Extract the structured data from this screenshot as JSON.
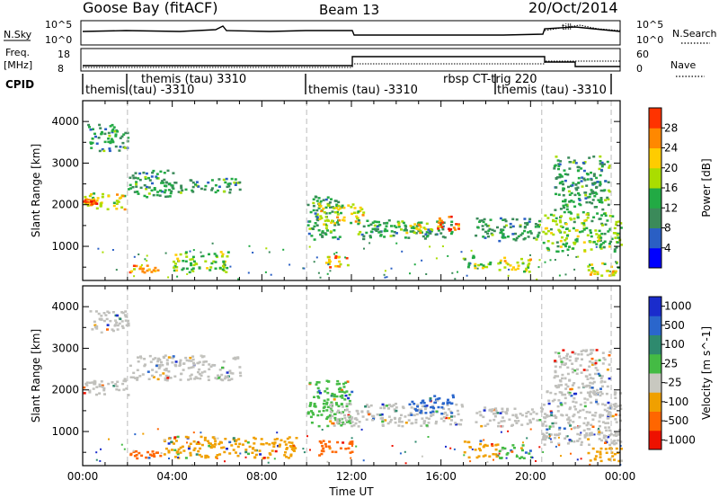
{
  "header": {
    "station": "Goose Bay (fitACF)",
    "beam": "Beam 13",
    "date": "20/Oct/2014"
  },
  "strip_nsky": {
    "left_label": "N.Sky",
    "right_label": "N.Search",
    "left_ticks": [
      "10^5",
      "10^0"
    ],
    "right_ticks": [
      "10^5",
      "10^0"
    ],
    "annotation": "till"
  },
  "strip_freq": {
    "left_label_1": "Freq.",
    "left_label_2": "[MHz]",
    "right_label": "Nave",
    "left_ticks": [
      "18",
      "8"
    ],
    "right_ticks": [
      "60",
      "0"
    ]
  },
  "cpid": {
    "label": "CPID",
    "segments": [
      {
        "name": "themis (tau) 3310",
        "start": 2.0,
        "end": 10.0
      },
      {
        "name": "themis",
        "start": 0.0,
        "end": 2.0
      },
      {
        "name": "(tau) -3310",
        "start": 2.0,
        "end": 10.0
      },
      {
        "name": "themis (tau) -3310",
        "start": 10.0,
        "end": 20.5
      },
      {
        "name": "rbsp CT-trig 220",
        "start": 15.0,
        "end": 20.5
      },
      {
        "name": "themis (tau) -3310",
        "start": 20.5,
        "end": 24.0
      }
    ]
  },
  "colors": {
    "power": [
      "#0000ff",
      "#2a5fc4",
      "#3b8a5a",
      "#22aa44",
      "#aadd00",
      "#ffcc00",
      "#ff8800",
      "#ff3300",
      "#ee0000"
    ],
    "velocity": [
      "#1a2ccc",
      "#2a66cc",
      "#2e8a6e",
      "#44bb44",
      "#c8c8c0",
      "#f0a000",
      "#ff6600",
      "#ee1100"
    ],
    "ground_scatter": "#c0c0bc"
  },
  "chart_data": [
    {
      "type": "heatmap",
      "panel": "power",
      "xlabel": "",
      "ylabel": "Slant Range [km]",
      "xlim": [
        0,
        24
      ],
      "ylim": [
        180,
        4500
      ],
      "xticks": [
        "00:00",
        "04:00",
        "08:00",
        "12:00",
        "16:00",
        "20:00",
        "00:00"
      ],
      "yticks": [
        1000,
        2000,
        3000,
        4000
      ],
      "colorbar": {
        "label": "Power [dB]",
        "ticks": [
          4,
          8,
          12,
          16,
          20,
          24,
          28
        ]
      },
      "blobs": [
        {
          "t0": 0.0,
          "t1": 2.0,
          "r0": 1900,
          "r1": 2300,
          "level": 16
        },
        {
          "t0": 0.0,
          "t1": 0.6,
          "r0": 2000,
          "r1": 2150,
          "level": 24
        },
        {
          "t0": 0.2,
          "t1": 2.0,
          "r0": 3300,
          "r1": 3950,
          "level": 8
        },
        {
          "t0": 2.0,
          "t1": 4.0,
          "r0": 2200,
          "r1": 2850,
          "level": 8
        },
        {
          "t0": 3.5,
          "t1": 7.0,
          "r0": 2300,
          "r1": 2650,
          "level": 8
        },
        {
          "t0": 2.0,
          "t1": 3.5,
          "r0": 380,
          "r1": 560,
          "level": 20
        },
        {
          "t0": 4.0,
          "t1": 6.5,
          "r0": 400,
          "r1": 900,
          "level": 12
        },
        {
          "t0": 10.0,
          "t1": 11.5,
          "r0": 1150,
          "r1": 2250,
          "level": 8
        },
        {
          "t0": 10.5,
          "t1": 12.5,
          "r0": 1550,
          "r1": 2050,
          "level": 16
        },
        {
          "t0": 12.0,
          "t1": 16.5,
          "r0": 1200,
          "r1": 1650,
          "level": 8
        },
        {
          "t0": 15.8,
          "t1": 16.8,
          "r0": 1400,
          "r1": 1750,
          "level": 24
        },
        {
          "t0": 14.0,
          "t1": 15.5,
          "r0": 1350,
          "r1": 1600,
          "level": 16
        },
        {
          "t0": 10.8,
          "t1": 11.8,
          "r0": 500,
          "r1": 800,
          "level": 20
        },
        {
          "t0": 17.0,
          "t1": 18.3,
          "r0": 500,
          "r1": 800,
          "level": 12
        },
        {
          "t0": 17.5,
          "t1": 20.5,
          "r0": 1150,
          "r1": 1700,
          "level": 8
        },
        {
          "t0": 18.5,
          "t1": 20.0,
          "r0": 380,
          "r1": 750,
          "level": 16
        },
        {
          "t0": 20.5,
          "t1": 24.0,
          "r0": 900,
          "r1": 1850,
          "level": 12
        },
        {
          "t0": 21.0,
          "t1": 23.5,
          "r0": 1900,
          "r1": 3200,
          "level": 8
        },
        {
          "t0": 22.5,
          "t1": 24.0,
          "r0": 300,
          "r1": 650,
          "level": 16
        }
      ]
    },
    {
      "type": "heatmap",
      "panel": "velocity",
      "xlabel": "Time UT",
      "ylabel": "Slant Range [km]",
      "xlim": [
        0,
        24
      ],
      "ylim": [
        180,
        4500
      ],
      "xticks": [
        "00:00",
        "04:00",
        "08:00",
        "12:00",
        "16:00",
        "20:00",
        "00:00"
      ],
      "yticks": [
        1000,
        2000,
        3000,
        4000
      ],
      "colorbar": {
        "label": "Velocity [m s^-1]",
        "ticks": [
          1000,
          500,
          100,
          25,
          -25,
          -100,
          -500,
          -1000
        ]
      },
      "blobs": [
        {
          "t0": 0.0,
          "t1": 2.0,
          "r0": 1900,
          "r1": 2300,
          "level": 0
        },
        {
          "t0": 0.2,
          "t1": 2.0,
          "r0": 3400,
          "r1": 3950,
          "level": 0
        },
        {
          "t0": 2.0,
          "t1": 7.0,
          "r0": 2250,
          "r1": 2850,
          "level": 0
        },
        {
          "t0": 2.0,
          "t1": 3.5,
          "r0": 380,
          "r1": 560,
          "level": -500
        },
        {
          "t0": 3.5,
          "t1": 9.5,
          "r0": 380,
          "r1": 900,
          "level": -100
        },
        {
          "t0": 10.0,
          "t1": 12.0,
          "r0": 1150,
          "r1": 2250,
          "level": 100
        },
        {
          "t0": 11.0,
          "t1": 17.0,
          "r0": 1150,
          "r1": 1700,
          "level": 0
        },
        {
          "t0": 14.5,
          "t1": 16.5,
          "r0": 1450,
          "r1": 1900,
          "level": 500
        },
        {
          "t0": 10.5,
          "t1": 12.0,
          "r0": 450,
          "r1": 800,
          "level": -500
        },
        {
          "t0": 17.0,
          "t1": 18.5,
          "r0": 400,
          "r1": 800,
          "level": -100
        },
        {
          "t0": 17.5,
          "t1": 20.5,
          "r0": 1150,
          "r1": 1600,
          "level": 0
        },
        {
          "t0": 18.5,
          "t1": 20.0,
          "r0": 380,
          "r1": 700,
          "level": 100
        },
        {
          "t0": 20.5,
          "t1": 24.0,
          "r0": 700,
          "r1": 2000,
          "level": 0
        },
        {
          "t0": 21.0,
          "t1": 23.5,
          "r0": 1900,
          "r1": 3000,
          "level": 0
        },
        {
          "t0": 22.5,
          "t1": 24.0,
          "r0": 300,
          "r1": 650,
          "level": -100
        }
      ]
    }
  ]
}
